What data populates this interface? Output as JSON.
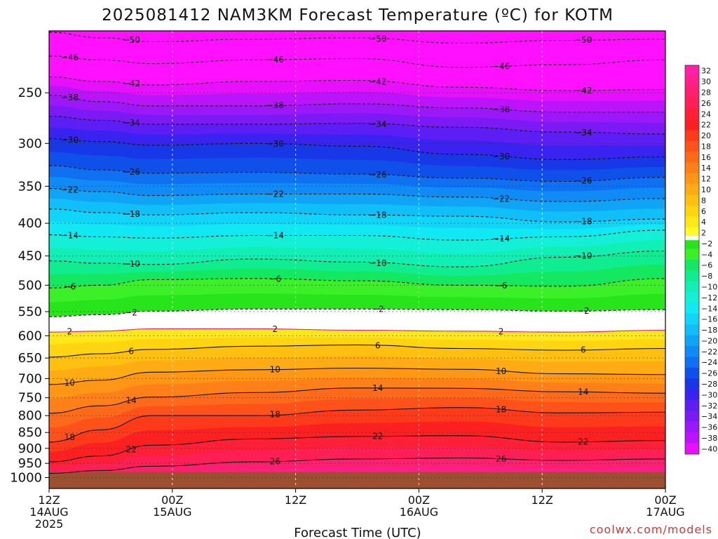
{
  "chart_data": {
    "type": "heatmap",
    "title": "2025081412 NAM3KM Forecast Temperature (ºC) for KOTM",
    "xlabel": "Forecast Time (UTC)",
    "ylabel": "",
    "credit": "coolwx.com/models",
    "x_ticks": [
      {
        "hour": 0,
        "lines": [
          "12Z",
          "14AUG",
          "2025"
        ]
      },
      {
        "hour": 12,
        "lines": [
          "00Z",
          "15AUG"
        ]
      },
      {
        "hour": 24,
        "lines": [
          "12Z"
        ]
      },
      {
        "hour": 36,
        "lines": [
          "00Z",
          "16AUG"
        ]
      },
      {
        "hour": 48,
        "lines": [
          "12Z"
        ]
      },
      {
        "hour": 60,
        "lines": [
          "00Z",
          "17AUG"
        ]
      }
    ],
    "xlim_hours": [
      0,
      60
    ],
    "y_axis": "pressure (hPa), log scale, inverted",
    "y_ticks": [
      250,
      300,
      350,
      400,
      450,
      500,
      550,
      600,
      650,
      700,
      750,
      800,
      850,
      900,
      950,
      1000
    ],
    "ylim": [
      200,
      1040
    ],
    "surface_pressure": 980,
    "grid": true,
    "colorbar": {
      "labels": [
        32,
        30,
        28,
        26,
        24,
        22,
        20,
        18,
        16,
        14,
        12,
        10,
        8,
        6,
        4,
        2,
        -2,
        -4,
        -6,
        -8,
        -10,
        -12,
        -14,
        -16,
        -18,
        -20,
        -22,
        -24,
        -26,
        -28,
        -30,
        -32,
        -34,
        -36,
        -38,
        -40
      ],
      "colors": {
        "32": "#ff1fa8",
        "30": "#ff1f8a",
        "28": "#ff1f6e",
        "26": "#ff1f55",
        "24": "#ff2038",
        "22": "#fc2020",
        "20": "#ff3a1a",
        "18": "#ff521a",
        "16": "#ff6a1a",
        "14": "#ff8018",
        "12": "#ff9616",
        "10": "#ffab14",
        "8": "#ffc010",
        "6": "#ffd410",
        "4": "#ffe818",
        "2": "#fffa28",
        "0": "#ffffff",
        "-2": "#28e41a",
        "-4": "#3cf028",
        "-6": "#14e860",
        "-8": "#10ec90",
        "-10": "#10f0b4",
        "-12": "#14f0d8",
        "-14": "#10e8f4",
        "-16": "#10d4f8",
        "-18": "#10bef8",
        "-20": "#10a4f6",
        "-22": "#108af4",
        "-24": "#1070f2",
        "-26": "#1050ea",
        "-28": "#1838e8",
        "-30": "#3a22f0",
        "-32": "#5c1ef4",
        "-34": "#7c1af6",
        "-36": "#9c18f8",
        "-38": "#bc14fa",
        "-40": "#e810fc",
        "-42": "#ff10ff"
      },
      "ground_color": "#9c5030"
    },
    "series": [
      {
        "name": "-50",
        "values": [
          [
            0,
            201
          ],
          [
            5,
            205
          ],
          [
            10,
            208
          ],
          [
            20,
            206
          ],
          [
            30,
            205
          ],
          [
            40,
            209
          ],
          [
            50,
            207
          ],
          [
            60,
            206
          ]
        ]
      },
      {
        "name": "-46",
        "values": [
          [
            0,
            219
          ],
          [
            5,
            222
          ],
          [
            10,
            225
          ],
          [
            20,
            222
          ],
          [
            30,
            221
          ],
          [
            40,
            228
          ],
          [
            50,
            226
          ],
          [
            60,
            222
          ]
        ]
      },
      {
        "name": "-42",
        "values": [
          [
            0,
            236
          ],
          [
            5,
            240
          ],
          [
            10,
            243
          ],
          [
            20,
            240
          ],
          [
            30,
            239
          ],
          [
            40,
            245
          ],
          [
            50,
            248
          ],
          [
            60,
            247
          ]
        ]
      },
      {
        "name": "-38",
        "values": [
          [
            0,
            252
          ],
          [
            5,
            258
          ],
          [
            10,
            262
          ],
          [
            20,
            262
          ],
          [
            30,
            260
          ],
          [
            40,
            264
          ],
          [
            50,
            268
          ],
          [
            60,
            268
          ]
        ]
      },
      {
        "name": "-34",
        "values": [
          [
            0,
            272
          ],
          [
            5,
            276
          ],
          [
            10,
            280
          ],
          [
            20,
            280
          ],
          [
            30,
            279
          ],
          [
            40,
            283
          ],
          [
            50,
            288
          ],
          [
            60,
            290
          ]
        ]
      },
      {
        "name": "-30",
        "values": [
          [
            0,
            295
          ],
          [
            5,
            298
          ],
          [
            10,
            302
          ],
          [
            20,
            300
          ],
          [
            30,
            303
          ],
          [
            40,
            312
          ],
          [
            50,
            318
          ],
          [
            60,
            315
          ]
        ]
      },
      {
        "name": "-26",
        "values": [
          [
            0,
            325
          ],
          [
            5,
            330
          ],
          [
            10,
            334
          ],
          [
            20,
            333
          ],
          [
            30,
            335
          ],
          [
            40,
            340
          ],
          [
            50,
            344
          ],
          [
            60,
            339
          ]
        ]
      },
      {
        "name": "-22",
        "values": [
          [
            0,
            353
          ],
          [
            5,
            357
          ],
          [
            10,
            362
          ],
          [
            20,
            360
          ],
          [
            30,
            360
          ],
          [
            40,
            364
          ],
          [
            50,
            370
          ],
          [
            60,
            366
          ]
        ]
      },
      {
        "name": "-18",
        "values": [
          [
            0,
            380
          ],
          [
            5,
            385
          ],
          [
            10,
            388
          ],
          [
            20,
            385
          ],
          [
            30,
            388
          ],
          [
            40,
            390
          ],
          [
            50,
            398
          ],
          [
            60,
            394
          ]
        ]
      },
      {
        "name": "-14",
        "values": [
          [
            0,
            417
          ],
          [
            5,
            420
          ],
          [
            10,
            422
          ],
          [
            20,
            418
          ],
          [
            30,
            418
          ],
          [
            40,
            425
          ],
          [
            50,
            420
          ],
          [
            60,
            410
          ]
        ]
      },
      {
        "name": "-10",
        "values": [
          [
            0,
            458
          ],
          [
            5,
            462
          ],
          [
            10,
            464
          ],
          [
            20,
            455
          ],
          [
            30,
            460
          ],
          [
            40,
            468
          ],
          [
            50,
            452
          ],
          [
            60,
            442
          ]
        ]
      },
      {
        "name": "-6",
        "values": [
          [
            0,
            505
          ],
          [
            5,
            500
          ],
          [
            10,
            490
          ],
          [
            20,
            488
          ],
          [
            30,
            492
          ],
          [
            40,
            500
          ],
          [
            50,
            502
          ],
          [
            60,
            488
          ]
        ]
      },
      {
        "name": "-2",
        "values": [
          [
            0,
            560
          ],
          [
            5,
            556
          ],
          [
            10,
            549
          ],
          [
            20,
            545
          ],
          [
            30,
            545
          ],
          [
            40,
            546
          ],
          [
            50,
            549
          ],
          [
            60,
            546
          ]
        ]
      },
      {
        "name": "2",
        "values": [
          [
            0,
            592
          ],
          [
            5,
            590
          ],
          [
            10,
            585
          ],
          [
            20,
            585
          ],
          [
            30,
            588
          ],
          [
            40,
            590
          ],
          [
            50,
            592
          ],
          [
            60,
            588
          ]
        ]
      },
      {
        "name": "6",
        "values": [
          [
            0,
            648
          ],
          [
            5,
            640
          ],
          [
            10,
            630
          ],
          [
            20,
            623
          ],
          [
            30,
            620
          ],
          [
            40,
            628
          ],
          [
            50,
            632
          ],
          [
            60,
            628
          ]
        ]
      },
      {
        "name": "10",
        "values": [
          [
            0,
            715
          ],
          [
            5,
            704
          ],
          [
            10,
            684
          ],
          [
            20,
            678
          ],
          [
            30,
            674
          ],
          [
            40,
            677
          ],
          [
            50,
            688
          ],
          [
            60,
            690
          ]
        ]
      },
      {
        "name": "14",
        "values": [
          [
            0,
            793
          ],
          [
            5,
            772
          ],
          [
            10,
            748
          ],
          [
            20,
            736
          ],
          [
            30,
            724
          ],
          [
            40,
            725
          ],
          [
            50,
            734
          ],
          [
            60,
            738
          ]
        ]
      },
      {
        "name": "18",
        "values": [
          [
            0,
            880
          ],
          [
            5,
            842
          ],
          [
            10,
            800
          ],
          [
            20,
            800
          ],
          [
            30,
            784
          ],
          [
            40,
            777
          ],
          [
            50,
            792
          ],
          [
            60,
            790
          ]
        ]
      },
      {
        "name": "22",
        "values": [
          [
            0,
            945
          ],
          [
            5,
            925
          ],
          [
            10,
            890
          ],
          [
            20,
            870
          ],
          [
            30,
            862
          ],
          [
            40,
            860
          ],
          [
            50,
            880
          ],
          [
            60,
            875
          ]
        ]
      },
      {
        "name": "26",
        "values": [
          [
            0,
            985
          ],
          [
            5,
            975
          ],
          [
            10,
            960
          ],
          [
            20,
            945
          ],
          [
            30,
            935
          ],
          [
            40,
            932
          ],
          [
            50,
            940
          ],
          [
            60,
            935
          ]
        ]
      }
    ]
  }
}
